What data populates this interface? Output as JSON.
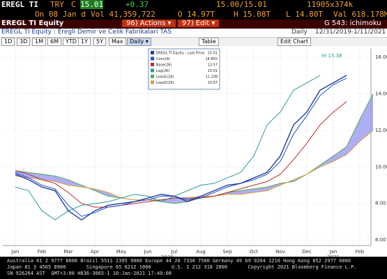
{
  "header": {
    "ticker": "EREGL TI",
    "currency": "TRY",
    "close_flag": "C",
    "last": "15.01",
    "change": "+0.37",
    "bid_ask": "15.00/15.01",
    "size": "11905x374k",
    "on_date": "On 08 Jan d",
    "volume": "Vol 41,359,722",
    "open": "O 14.97T",
    "high": "H 15.08T",
    "low": "L 14.80T",
    "value": "Val 618.178M",
    "security": "EREGL TI Equity",
    "actions": "96) Actions ▾",
    "edit": "97) Edit ▾",
    "function": "G 543: ichimoku",
    "description": "EREGL TI Equity : Eregli Demir ve Celik Fabrikalari TAS",
    "frequency": "Daily",
    "range": "12/31/2019-1/11/2021",
    "buttons": [
      "1D",
      "3D",
      "1M",
      "6M",
      "YTD",
      "1Y",
      "5Y",
      "Max"
    ],
    "period_menu": "Daily ▾",
    "table_button": "Table",
    "edit_chart_button": "Edit Chart"
  },
  "chart_data": {
    "type": "line",
    "categories": [
      "Jan",
      null,
      "Feb",
      null,
      "Mar",
      null,
      "Apr",
      null,
      "May",
      null,
      "Jun",
      null,
      "Jul",
      null,
      "Aug",
      null,
      "Sep",
      null,
      "Oct",
      null,
      "Nov",
      null,
      "Dec",
      null,
      "Jan",
      null,
      "Feb",
      null
    ],
    "year_labels": [
      "2020",
      "2021"
    ],
    "annotation": "Hi 15.38",
    "ylim": [
      5.7,
      16.5
    ],
    "yticks": [
      {
        "value": 6,
        "label": "6.00"
      },
      {
        "value": 8,
        "label": "8.00"
      },
      {
        "value": 10,
        "label": "10.00"
      },
      {
        "value": 12,
        "label": "12.00"
      },
      {
        "value": 14,
        "label": "14.00"
      },
      {
        "value": 16,
        "label": "16.00"
      }
    ],
    "grid": true,
    "cloud_color": "#9a9af0",
    "series": [
      {
        "name": "EREGL TI Equity - Last Price",
        "legend_value": "15.01",
        "color": "#1f3f99",
        "values": [
          9.6,
          9.3,
          8.9,
          8.7,
          7.6,
          7.1,
          7.6,
          7.9,
          8.0,
          8.1,
          8.3,
          8.5,
          8.4,
          8.1,
          8.4,
          8.7,
          9.0,
          9.1,
          9.4,
          9.7,
          10.6,
          12.3,
          13.0,
          14.2,
          14.6,
          15.01,
          null,
          null
        ]
      },
      {
        "name": "Conv(9)",
        "legend_value": "14.855",
        "color": "#2050d0",
        "values": [
          9.7,
          9.4,
          9.0,
          8.8,
          7.9,
          7.3,
          7.5,
          7.8,
          7.9,
          8.1,
          8.2,
          8.4,
          8.4,
          8.2,
          8.3,
          8.6,
          8.9,
          9.1,
          9.3,
          9.6,
          10.3,
          11.8,
          12.8,
          13.9,
          14.5,
          14.855,
          null,
          null
        ]
      },
      {
        "name": "Base(26)",
        "legend_value": "13.57",
        "color": "#c0282a",
        "values": [
          9.8,
          9.6,
          9.3,
          9.1,
          8.6,
          8.0,
          7.8,
          7.8,
          7.9,
          8.0,
          8.1,
          8.2,
          8.3,
          8.3,
          8.3,
          8.4,
          8.6,
          8.8,
          9.0,
          9.2,
          9.6,
          10.4,
          11.3,
          12.3,
          13.0,
          13.57,
          null,
          null
        ]
      },
      {
        "name": "Lag(26)",
        "legend_value": "15.01",
        "color": "#2a9a9a",
        "values": [
          8.9,
          8.7,
          7.6,
          7.1,
          7.6,
          7.9,
          8.0,
          8.1,
          8.3,
          8.5,
          8.4,
          8.1,
          8.4,
          8.7,
          9.0,
          9.1,
          9.4,
          9.7,
          10.6,
          12.3,
          13.0,
          14.2,
          14.6,
          15.01,
          null,
          null,
          null,
          null
        ]
      },
      {
        "name": "Lead1(26)",
        "legend_value": "11.108",
        "color": "#4caf50",
        "values": [
          9.8,
          9.7,
          9.6,
          9.5,
          9.3,
          9.0,
          8.7,
          8.4,
          8.3,
          8.2,
          8.2,
          8.1,
          8.0,
          8.1,
          8.3,
          8.4,
          8.6,
          8.7,
          8.8,
          8.9,
          9.1,
          9.2,
          9.6,
          10.1,
          10.6,
          11.108,
          12.6,
          14.0
        ]
      },
      {
        "name": "Lead2(26)",
        "legend_value": "10.67",
        "color": "#e89a3a",
        "values": [
          9.5,
          9.4,
          9.3,
          9.2,
          9.0,
          8.9,
          8.8,
          8.6,
          8.3,
          8.2,
          8.2,
          8.2,
          8.3,
          8.3,
          8.4,
          8.4,
          8.5,
          8.5,
          8.6,
          8.7,
          9.0,
          9.3,
          9.6,
          10.0,
          10.3,
          10.67,
          11.4,
          12.0
        ]
      }
    ]
  },
  "footer": {
    "line1": "Australia 61 2 9777 8600 Brazil 5511 2395 9000 Europe 44 20 7330 7500 Germany 49 69 9204 1210 Hong Kong 852 2977 6000",
    "line2": "Japan 81 3 4565 8900       Singapore 65 6212 1000       U.S. 1 212 318 2000       Copyright 2021 Bloomberg Finance L.P.",
    "line3": "SN 926264 AST  GMT+3:00 H836-3065-1 10-Jan-2021 17:40:08"
  }
}
